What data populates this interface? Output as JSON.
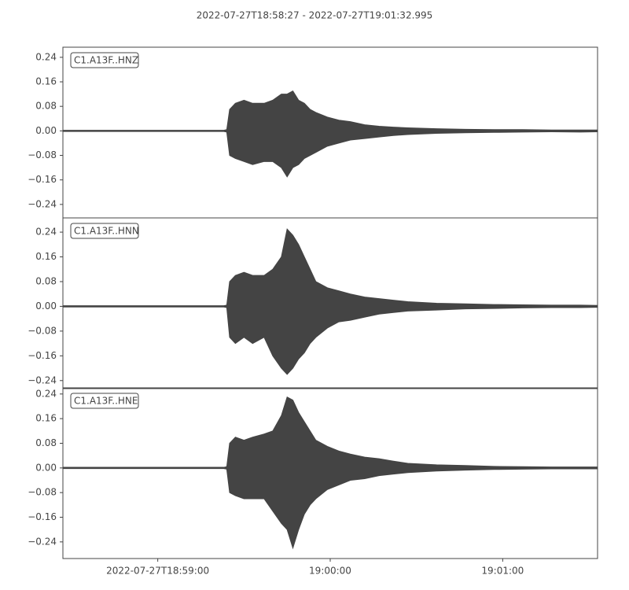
{
  "chart_data": [
    {
      "type": "area",
      "title": "2022-07-27T18:58:27  -  2022-07-27T19:01:32.995",
      "label": "C1.A13F..HNZ",
      "x": [
        0,
        10,
        20,
        30,
        40,
        50,
        56,
        57,
        58,
        60,
        63,
        66,
        70,
        73,
        76,
        78,
        80,
        82,
        84,
        86,
        88,
        92,
        96,
        100,
        105,
        110,
        115,
        120,
        130,
        140,
        150,
        160,
        170,
        180,
        186
      ],
      "series": [
        {
          "color": "#444444",
          "values": [
            0.002,
            0.002,
            0.002,
            0.002,
            0.002,
            0.002,
            0.002,
            0.004,
            0.07,
            0.09,
            0.1,
            0.09,
            0.09,
            0.1,
            0.12,
            0.12,
            0.13,
            0.1,
            0.09,
            0.07,
            0.06,
            0.045,
            0.035,
            0.03,
            0.02,
            0.015,
            0.012,
            0.01,
            0.007,
            0.005,
            0.004,
            0.004,
            0.003,
            0.003,
            0.003
          ]
        },
        {
          "color": "#444444",
          "values": [
            -0.002,
            -0.002,
            -0.002,
            -0.002,
            -0.002,
            -0.002,
            -0.002,
            -0.004,
            -0.08,
            -0.09,
            -0.1,
            -0.11,
            -0.1,
            -0.1,
            -0.12,
            -0.15,
            -0.12,
            -0.11,
            -0.09,
            -0.08,
            -0.07,
            -0.05,
            -0.04,
            -0.03,
            -0.025,
            -0.02,
            -0.015,
            -0.012,
            -0.008,
            -0.006,
            -0.005,
            -0.004,
            -0.003,
            -0.004,
            -0.003
          ]
        }
      ],
      "xlim": [
        0,
        185.995
      ],
      "ylim": [
        -0.284,
        0.273
      ],
      "yticks": [
        0.24,
        0.16,
        0.08,
        {
          "value": 0,
          "label": "0.00"
        },
        {
          "value": -0.08,
          "label": "−0.08"
        },
        {
          "value": -0.16,
          "label": "−0.16"
        },
        {
          "value": -0.24,
          "label": "−0.24"
        }
      ]
    },
    {
      "type": "area",
      "label": "C1.A13F..HNN",
      "x": [
        0,
        10,
        20,
        30,
        40,
        50,
        56,
        57,
        58,
        60,
        63,
        66,
        70,
        73,
        76,
        78,
        80,
        82,
        84,
        86,
        88,
        92,
        96,
        100,
        105,
        110,
        115,
        120,
        130,
        140,
        150,
        160,
        170,
        180,
        186
      ],
      "series": [
        {
          "color": "#444444",
          "values": [
            0.002,
            0.002,
            0.002,
            0.002,
            0.002,
            0.002,
            0.002,
            0.004,
            0.08,
            0.1,
            0.11,
            0.1,
            0.1,
            0.12,
            0.16,
            0.25,
            0.23,
            0.2,
            0.16,
            0.12,
            0.08,
            0.06,
            0.05,
            0.04,
            0.03,
            0.025,
            0.02,
            0.015,
            0.01,
            0.008,
            0.006,
            0.005,
            0.004,
            0.004,
            0.003
          ]
        },
        {
          "color": "#444444",
          "values": [
            -0.002,
            -0.002,
            -0.002,
            -0.002,
            -0.002,
            -0.002,
            -0.002,
            -0.004,
            -0.1,
            -0.12,
            -0.1,
            -0.12,
            -0.1,
            -0.16,
            -0.2,
            -0.22,
            -0.2,
            -0.17,
            -0.15,
            -0.12,
            -0.1,
            -0.07,
            -0.05,
            -0.045,
            -0.035,
            -0.025,
            -0.02,
            -0.015,
            -0.012,
            -0.008,
            -0.007,
            -0.005,
            -0.004,
            -0.004,
            -0.003
          ]
        }
      ],
      "xlim": [
        0,
        185.995
      ],
      "ylim": [
        -0.266,
        0.286
      ],
      "yticks": [
        0.24,
        0.16,
        0.08,
        {
          "value": 0,
          "label": "0.00"
        },
        {
          "value": -0.08,
          "label": "−0.08"
        },
        {
          "value": -0.16,
          "label": "−0.16"
        },
        {
          "value": -0.24,
          "label": "−0.24"
        }
      ]
    },
    {
      "type": "area",
      "label": "C1.A13F..HNE",
      "x": [
        0,
        10,
        20,
        30,
        40,
        50,
        56,
        57,
        58,
        60,
        63,
        66,
        70,
        73,
        76,
        78,
        80,
        82,
        84,
        86,
        88,
        92,
        96,
        100,
        105,
        110,
        115,
        120,
        130,
        140,
        150,
        160,
        170,
        180,
        186
      ],
      "series": [
        {
          "color": "#444444",
          "values": [
            0.002,
            0.002,
            0.002,
            0.002,
            0.002,
            0.002,
            0.002,
            0.004,
            0.08,
            0.1,
            0.09,
            0.1,
            0.11,
            0.12,
            0.17,
            0.23,
            0.22,
            0.18,
            0.15,
            0.12,
            0.09,
            0.07,
            0.055,
            0.045,
            0.035,
            0.03,
            0.022,
            0.015,
            0.01,
            0.008,
            0.005,
            0.004,
            0.003,
            0.003,
            0.003
          ]
        },
        {
          "color": "#444444",
          "values": [
            -0.002,
            -0.002,
            -0.002,
            -0.002,
            -0.002,
            -0.002,
            -0.002,
            -0.004,
            -0.08,
            -0.09,
            -0.1,
            -0.1,
            -0.1,
            -0.14,
            -0.18,
            -0.2,
            -0.26,
            -0.2,
            -0.15,
            -0.12,
            -0.1,
            -0.07,
            -0.055,
            -0.04,
            -0.035,
            -0.025,
            -0.02,
            -0.015,
            -0.01,
            -0.007,
            -0.005,
            -0.004,
            -0.003,
            -0.003,
            -0.003
          ]
        }
      ],
      "xlim": [
        0,
        185.995
      ],
      "ylim": [
        -0.294,
        0.26
      ],
      "yticks": [
        0.24,
        0.16,
        0.08,
        {
          "value": 0,
          "label": "0.00"
        },
        {
          "value": -0.08,
          "label": "−0.08"
        },
        {
          "value": -0.16,
          "label": "−0.16"
        },
        {
          "value": -0.24,
          "label": "−0.24"
        }
      ],
      "xticks": [
        {
          "value": 33,
          "label": "2022-07-27T18:59:00"
        },
        {
          "value": 93,
          "label": "19:00:00"
        },
        {
          "value": 153,
          "label": "19:01:00"
        }
      ]
    }
  ]
}
